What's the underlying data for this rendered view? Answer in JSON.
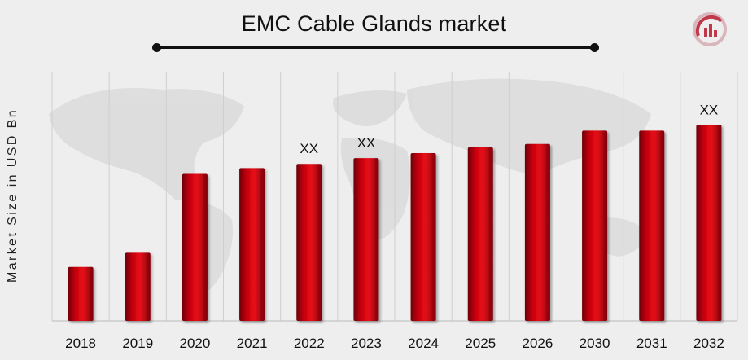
{
  "chart_data": {
    "type": "bar",
    "title": "EMC Cable Glands market",
    "ylabel": "Market Size in USD Bn",
    "xlabel": "",
    "categories": [
      "2018",
      "2019",
      "2020",
      "2021",
      "2022",
      "2023",
      "2024",
      "2025",
      "2026",
      "2030",
      "2031",
      "2032"
    ],
    "values": [
      0.65,
      0.82,
      1.77,
      1.84,
      1.89,
      1.96,
      2.02,
      2.09,
      2.13,
      2.29,
      2.29,
      2.36
    ],
    "data_labels": [
      "",
      "",
      "",
      "",
      "XX",
      "XX",
      "",
      "",
      "",
      "",
      "",
      "XX"
    ],
    "ylim": [
      0,
      3
    ],
    "grid": "vertical",
    "legend": "none",
    "colors": {
      "bar": "#c8000a",
      "bar_dark": "#6e0006",
      "background": "#eeeeee",
      "grid": "#cfcfcf",
      "text": "#111111",
      "logo": "#c0394b"
    }
  },
  "logo_icon": "brand-logo-icon"
}
